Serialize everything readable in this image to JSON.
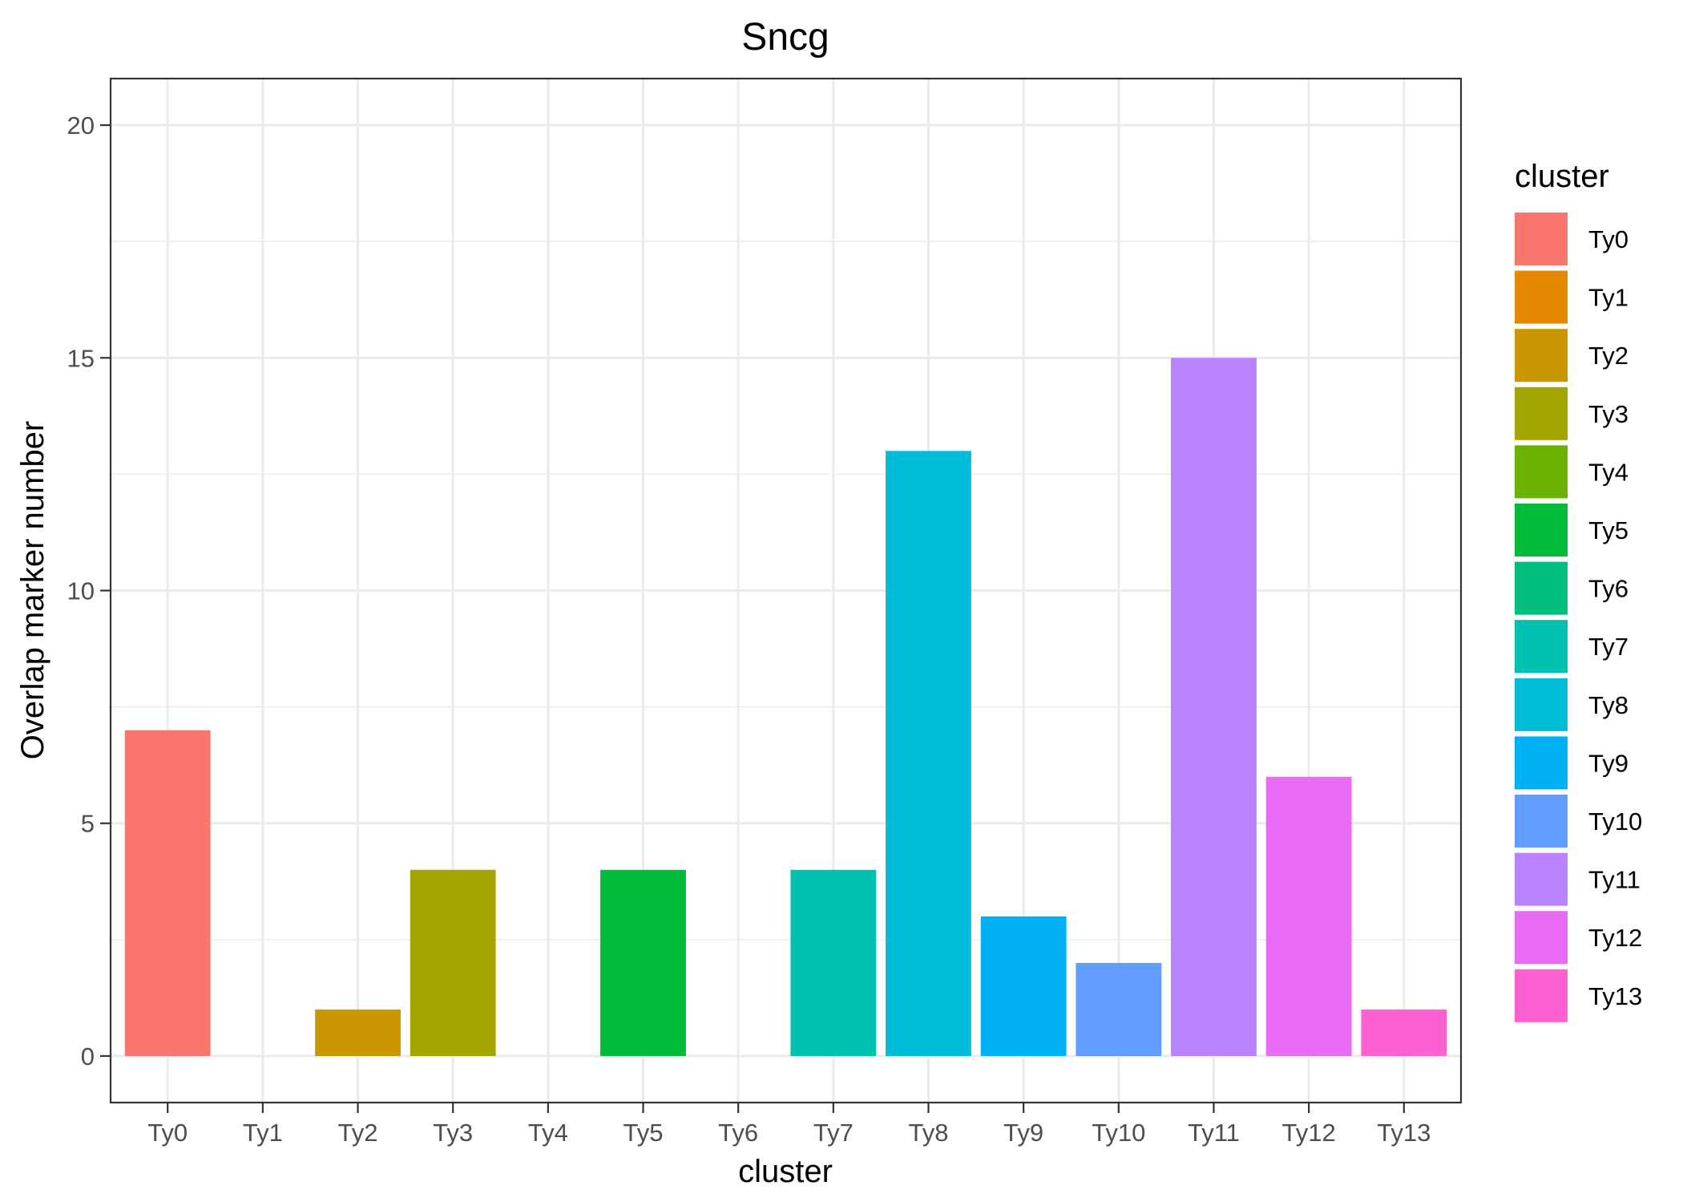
{
  "chart_data": {
    "type": "bar",
    "title": "Sncg",
    "xlabel": "cluster",
    "ylabel": "Overlap marker number",
    "categories": [
      "Ty0",
      "Ty1",
      "Ty2",
      "Ty3",
      "Ty4",
      "Ty5",
      "Ty6",
      "Ty7",
      "Ty8",
      "Ty9",
      "Ty10",
      "Ty11",
      "Ty12",
      "Ty13"
    ],
    "values": [
      7,
      0,
      1,
      4,
      0,
      4,
      0,
      4,
      13,
      3,
      2,
      15,
      6,
      1
    ],
    "colors": [
      "#F8766D",
      "#E58700",
      "#C99800",
      "#A3A500",
      "#6BB100",
      "#00BA38",
      "#00BF7D",
      "#00C0AF",
      "#00BCD8",
      "#00B0F6",
      "#619CFF",
      "#B983FF",
      "#E76BF3",
      "#FD61D1"
    ],
    "ylim": [
      -1,
      21
    ],
    "yticks": [
      0,
      5,
      10,
      15,
      20
    ],
    "grid": true,
    "legend": {
      "title": "cluster",
      "position": "right",
      "entries": [
        "Ty0",
        "Ty1",
        "Ty2",
        "Ty3",
        "Ty4",
        "Ty5",
        "Ty6",
        "Ty7",
        "Ty8",
        "Ty9",
        "Ty10",
        "Ty11",
        "Ty12",
        "Ty13"
      ]
    }
  }
}
